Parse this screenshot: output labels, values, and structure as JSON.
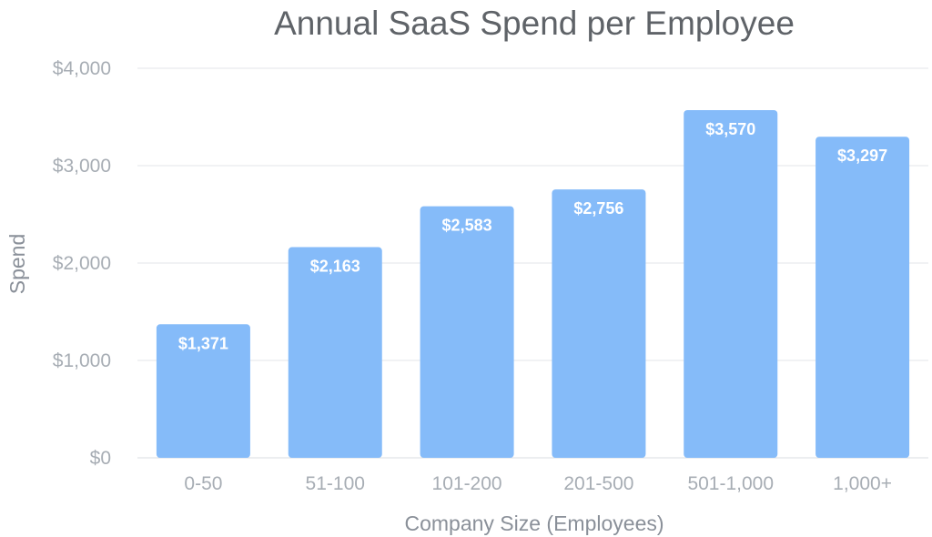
{
  "colors": {
    "bar": "#85bbf9",
    "title": "#5f6368",
    "axis_text": "#a7adb4",
    "grid": "#e3e6ea",
    "data_label": "#ffffff"
  },
  "chart_data": {
    "type": "bar",
    "title": "Annual SaaS Spend per Employee",
    "xlabel": "Company Size (Employees)",
    "ylabel": "Spend",
    "categories": [
      "0-50",
      "51-100",
      "101-200",
      "201-500",
      "501-1,000",
      "1,000+"
    ],
    "values": [
      1371,
      2163,
      2583,
      2756,
      3570,
      3297
    ],
    "data_labels": [
      "$1,371",
      "$2,163",
      "$2,583",
      "$2,756",
      "$3,570",
      "$3,297"
    ],
    "ylim": [
      0,
      4000
    ],
    "yticks": [
      0,
      1000,
      2000,
      3000,
      4000
    ],
    "ytick_labels": [
      "$0",
      "$1,000",
      "$2,000",
      "$3,000",
      "$4,000"
    ],
    "grid": true,
    "legend": "none"
  }
}
